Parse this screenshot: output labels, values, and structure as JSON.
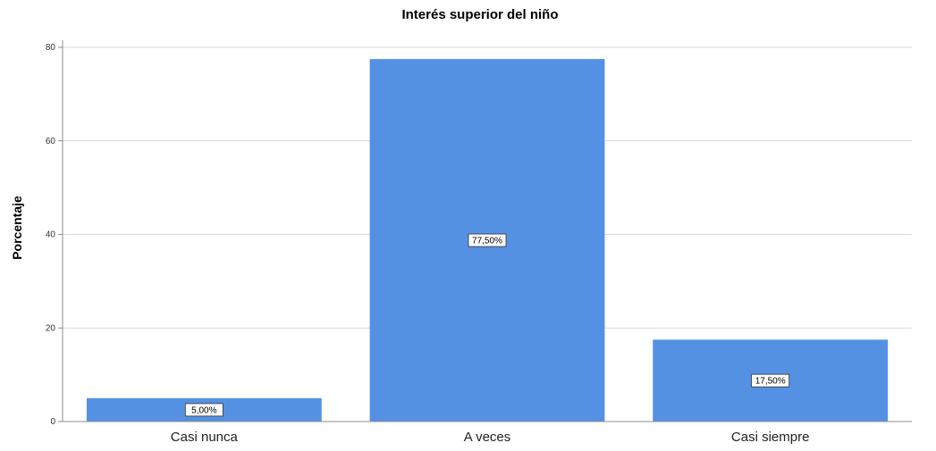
{
  "chart_data": {
    "type": "bar",
    "title": "Interés superior del niño",
    "xlabel": "",
    "ylabel": "Porcentaje",
    "categories": [
      "Casi nunca",
      "A veces",
      "Casi siempre"
    ],
    "values": [
      5.0,
      77.5,
      17.5
    ],
    "data_labels": [
      "5,00%",
      "77,50%",
      "17,50%"
    ],
    "ylim": [
      0,
      80
    ],
    "yticks": [
      0,
      20,
      40,
      60,
      80
    ],
    "grid": true,
    "bar_color": "#5591e3",
    "gridline_color": "#d9d9d9",
    "axis_color": "#8c8c8c"
  }
}
